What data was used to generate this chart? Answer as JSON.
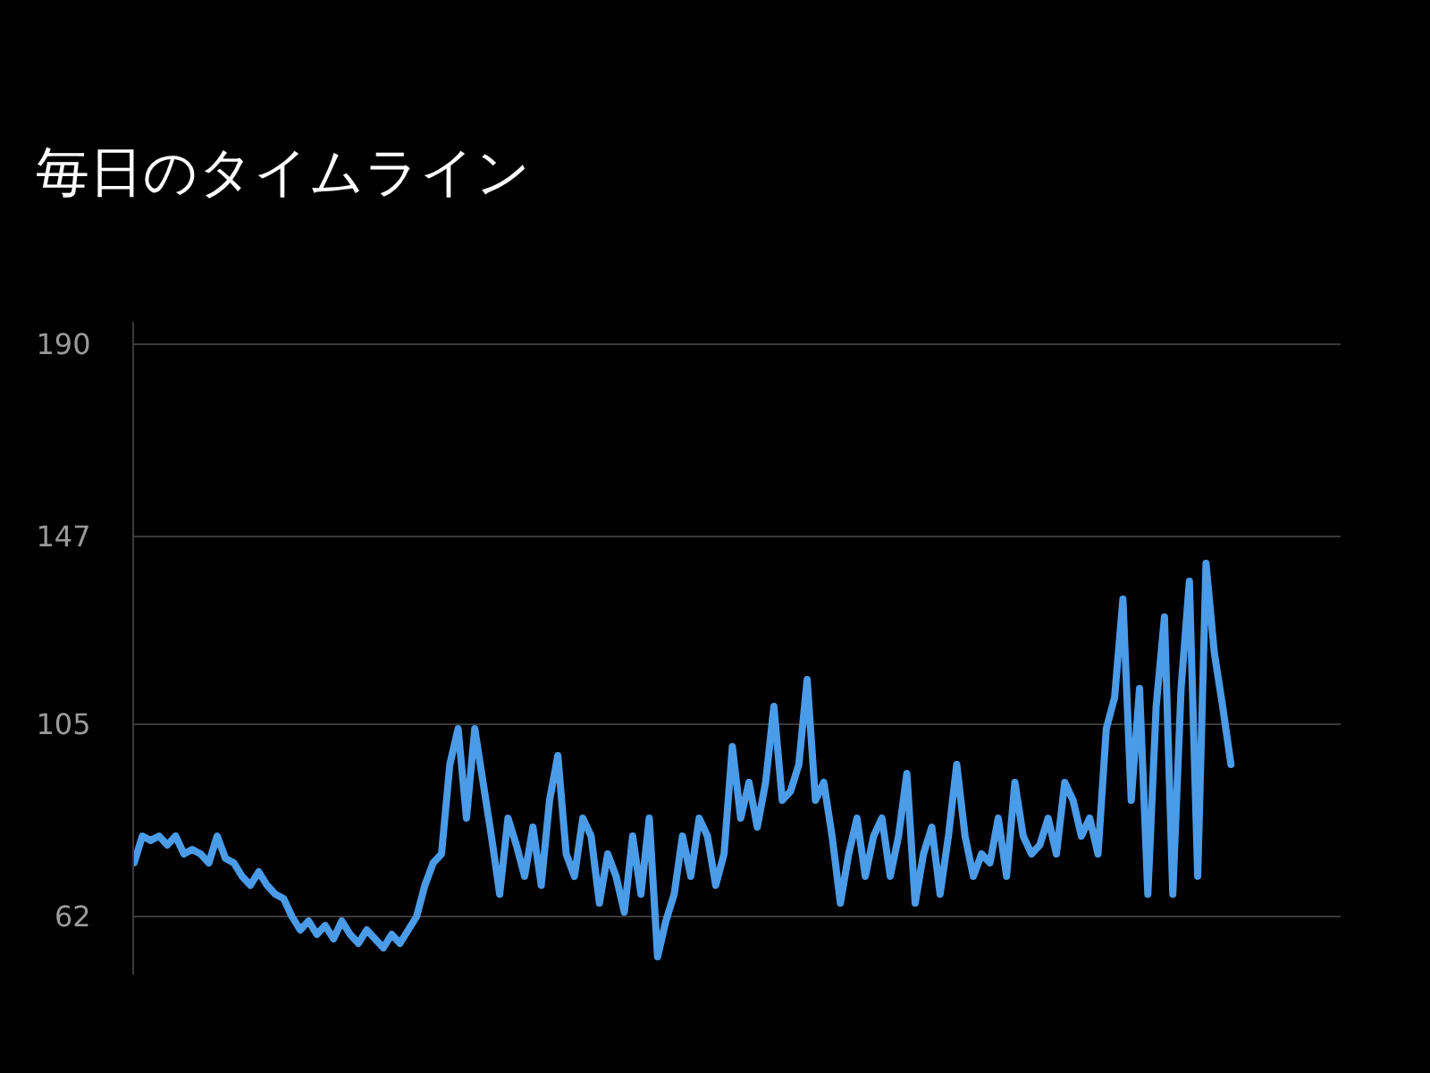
{
  "chart_data": {
    "type": "line",
    "title": "毎日のタイムライン",
    "categories": [
      null,
      null,
      null,
      null,
      null,
      null,
      null,
      null,
      null,
      null,
      null,
      null,
      null,
      null,
      null,
      null,
      null,
      null,
      null,
      null,
      null,
      null,
      null,
      null,
      null,
      null,
      null,
      null,
      null,
      null,
      null,
      null,
      null,
      null,
      null,
      null,
      null,
      null,
      null,
      null,
      null,
      null,
      null,
      null,
      null,
      null,
      null,
      null,
      null,
      null,
      null,
      null,
      null,
      null,
      null,
      null,
      null,
      null,
      null,
      null,
      null,
      null,
      null,
      null,
      null,
      null,
      null,
      null,
      null,
      null,
      null,
      null,
      null,
      null,
      null,
      null,
      null,
      null,
      null,
      null,
      null,
      null,
      null,
      null,
      null,
      null,
      null,
      null,
      null,
      null,
      null,
      null,
      null,
      null,
      null,
      null,
      null,
      null,
      null,
      null,
      null,
      null,
      null,
      null,
      null,
      null,
      null,
      null,
      null,
      null,
      null,
      null,
      null,
      null,
      null,
      null,
      null,
      null,
      null,
      null,
      null,
      null,
      null,
      null,
      null,
      null,
      null,
      null,
      null,
      null,
      null,
      null,
      null
    ],
    "series": [
      {
        "color": "#4a9be8",
        "values": [
          74,
          80,
          79,
          80,
          78,
          80,
          76,
          77,
          76,
          74,
          80,
          75,
          74,
          71,
          69,
          72,
          69,
          67,
          66,
          62,
          59,
          61,
          58,
          60,
          57,
          61,
          58,
          56,
          59,
          57,
          55,
          58,
          56,
          59,
          62,
          69,
          74,
          76,
          96,
          104,
          84,
          104,
          92,
          80,
          67,
          84,
          78,
          71,
          82,
          69,
          88,
          98,
          76,
          71,
          84,
          80,
          65,
          76,
          71,
          63,
          80,
          67,
          84,
          53,
          61,
          67,
          80,
          71,
          84,
          80,
          69,
          76,
          100,
          84,
          92,
          82,
          92,
          109,
          88,
          90,
          96,
          115,
          88,
          92,
          80,
          65,
          76,
          84,
          71,
          80,
          84,
          71,
          80,
          94,
          65,
          76,
          82,
          67,
          80,
          96,
          80,
          71,
          76,
          74,
          84,
          71,
          92,
          80,
          76,
          78,
          84,
          76,
          92,
          88,
          80,
          84,
          76,
          104,
          111,
          133,
          88,
          113,
          67,
          109,
          129,
          67,
          113,
          137,
          71,
          141,
          121,
          109,
          96
        ]
      }
    ],
    "ylim": [
      49,
      195
    ],
    "yticks": [
      62,
      105,
      147,
      190
    ],
    "grid": "y",
    "marker": "none",
    "line_style": "solid",
    "tick_labels": "y"
  }
}
